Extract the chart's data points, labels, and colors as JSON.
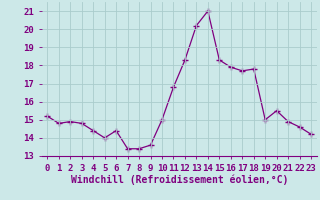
{
  "x": [
    0,
    1,
    2,
    3,
    4,
    5,
    6,
    7,
    8,
    9,
    10,
    11,
    12,
    13,
    14,
    15,
    16,
    17,
    18,
    19,
    20,
    21,
    22,
    23
  ],
  "y": [
    15.2,
    14.8,
    14.9,
    14.8,
    14.4,
    14.0,
    14.4,
    13.4,
    13.4,
    13.6,
    15.0,
    16.8,
    18.3,
    20.2,
    21.0,
    18.3,
    17.9,
    17.7,
    17.8,
    15.0,
    15.5,
    14.9,
    14.6,
    14.2
  ],
  "line_color": "#800080",
  "marker": "+",
  "marker_size": 4,
  "bg_color": "#cce8e8",
  "grid_color": "#aacccc",
  "xlabel": "Windchill (Refroidissement éolien,°C)",
  "ylabel_ticks": [
    13,
    14,
    15,
    16,
    17,
    18,
    19,
    20,
    21
  ],
  "xlim": [
    -0.5,
    23.5
  ],
  "ylim": [
    13,
    21.5
  ],
  "tick_fontsize": 6.5,
  "xlabel_fontsize": 7,
  "label_color": "#800080"
}
